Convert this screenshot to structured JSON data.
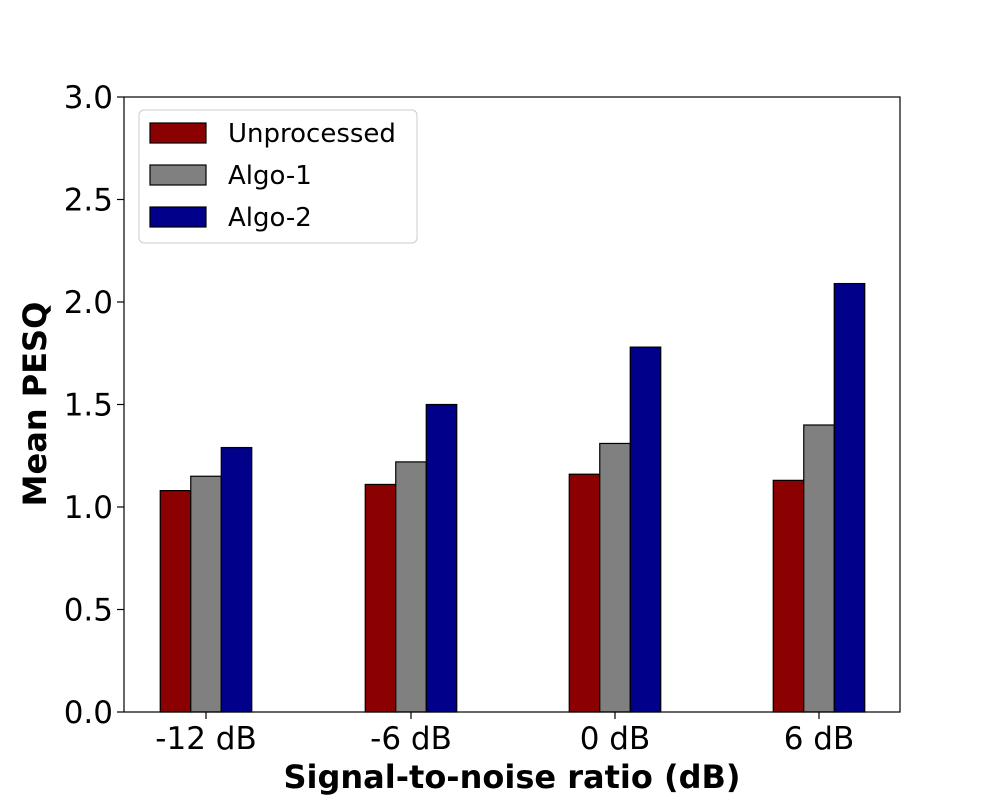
{
  "chart_data": {
    "type": "bar",
    "title": "",
    "xlabel": "Signal-to-noise ratio (dB)",
    "ylabel": "Mean PESQ",
    "categories": [
      "-12 dB",
      "-6 dB",
      "0 dB",
      "6 dB"
    ],
    "series": [
      {
        "name": "Unprocessed",
        "color": "#8b0000",
        "values": [
          1.08,
          1.11,
          1.16,
          1.13
        ]
      },
      {
        "name": "Algo-1",
        "color": "#808080",
        "values": [
          1.15,
          1.22,
          1.31,
          1.4
        ]
      },
      {
        "name": "Algo-2",
        "color": "#00008b",
        "values": [
          1.29,
          1.5,
          1.78,
          2.09
        ]
      }
    ],
    "ylim": [
      0,
      3.0
    ],
    "yticks": [
      "0.0",
      "0.5",
      "1.0",
      "1.5",
      "2.0",
      "2.5",
      "3.0"
    ],
    "grid": false,
    "legend": "top-left"
  }
}
